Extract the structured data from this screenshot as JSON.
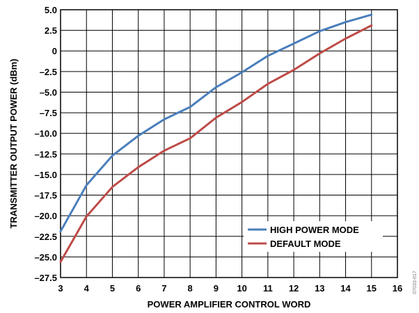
{
  "chart_data": {
    "type": "line",
    "xlabel": "POWER AMPLIFIER CONTROL WORD",
    "ylabel": "TRANSMITTER OUTPUT POWER (dBm)",
    "xlim": [
      3,
      16
    ],
    "ylim": [
      -27.5,
      5.0
    ],
    "x_ticks": [
      "3",
      "4",
      "5",
      "6",
      "7",
      "8",
      "9",
      "10",
      "11",
      "12",
      "13",
      "14",
      "15",
      "16"
    ],
    "y_ticks": [
      "5.0",
      "2.5",
      "0",
      "–2.5",
      "–5.0",
      "–7.5",
      "–10.0",
      "–12.5",
      "–15.0",
      "–17.5",
      "–20.0",
      "–22.5",
      "–25.0",
      "–27.5"
    ],
    "grid": true,
    "legend_position": "lower-right",
    "x": [
      3,
      4,
      5,
      6,
      7,
      8,
      9,
      10,
      11,
      12,
      13,
      14,
      15
    ],
    "series": [
      {
        "name": "HIGH POWER MODE",
        "color": "#4a7ebb",
        "values": [
          -21.9,
          -16.3,
          -12.7,
          -10.3,
          -8.3,
          -6.8,
          -4.4,
          -2.6,
          -0.6,
          0.9,
          2.4,
          3.5,
          4.4
        ]
      },
      {
        "name": "DEFAULT MODE",
        "color": "#be4b48",
        "values": [
          -25.6,
          -20.1,
          -16.5,
          -14.1,
          -12.1,
          -10.6,
          -8.1,
          -6.2,
          -4.0,
          -2.3,
          -0.3,
          1.5,
          3.1
        ]
      }
    ]
  },
  "side_label": "07033-017"
}
